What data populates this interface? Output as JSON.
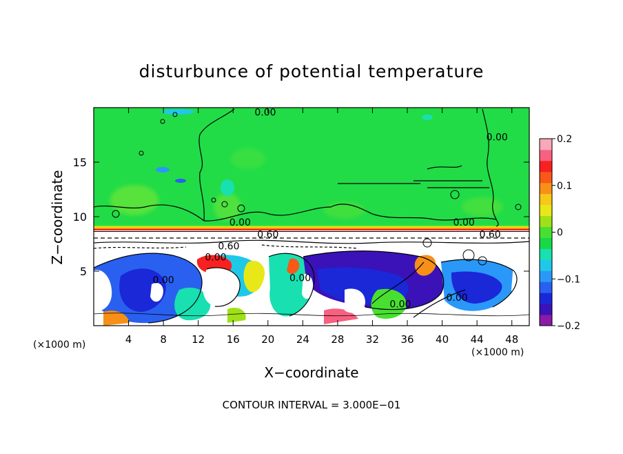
{
  "chart_data": {
    "type": "heatmap",
    "title": "disturbunce of potential temperature",
    "xlabel": "X−coordinate",
    "ylabel": "Z−coordinate",
    "x_unit_left": "(×1000 m)",
    "x_unit_right": "(×1000 m)",
    "footer": "CONTOUR INTERVAL = 3.000E−01",
    "xlim": [
      0,
      50
    ],
    "ylim": [
      0,
      20
    ],
    "x_ticks": [
      4,
      8,
      12,
      16,
      20,
      24,
      28,
      32,
      36,
      40,
      44,
      48
    ],
    "y_ticks": [
      5,
      10,
      15
    ],
    "colorbar": {
      "range": [
        -0.2,
        0.2
      ],
      "ticks": [
        {
          "value": 0.2,
          "label": "0.2"
        },
        {
          "value": 0.1,
          "label": "0.1"
        },
        {
          "value": 0,
          "label": "0"
        },
        {
          "value": -0.1,
          "label": "−0.1"
        },
        {
          "value": -0.2,
          "label": "−0.2"
        }
      ],
      "colors": [
        "#8a1aa8",
        "#3a12b8",
        "#1a28d8",
        "#2a60f0",
        "#2a98f8",
        "#20c8e8",
        "#18e0b0",
        "#18d848",
        "#48e030",
        "#a0e018",
        "#e8e818",
        "#f8c818",
        "#f89018",
        "#f85818",
        "#f82020",
        "#f86080",
        "#f8a8b8"
      ]
    },
    "contour_labels": [
      {
        "x": 19.7,
        "y": 19.6,
        "label": "0.00"
      },
      {
        "x": 46.3,
        "y": 17.3,
        "label": "0.00"
      },
      {
        "x": 16.8,
        "y": 9.5,
        "label": "0.00"
      },
      {
        "x": 42.5,
        "y": 9.5,
        "label": "0.00"
      },
      {
        "x": 20.0,
        "y": 8.4,
        "label": "0.60"
      },
      {
        "x": 45.5,
        "y": 8.4,
        "label": "0.60"
      },
      {
        "x": 15.5,
        "y": 7.3,
        "label": "0.60"
      },
      {
        "x": 14.0,
        "y": 6.3,
        "label": "0.00"
      },
      {
        "x": 8.0,
        "y": 4.2,
        "label": "0.00"
      },
      {
        "x": 23.7,
        "y": 4.4,
        "label": "0.00"
      },
      {
        "x": 35.2,
        "y": 2.0,
        "label": "0.00"
      },
      {
        "x": 41.7,
        "y": 2.6,
        "label": "0.00"
      }
    ]
  }
}
